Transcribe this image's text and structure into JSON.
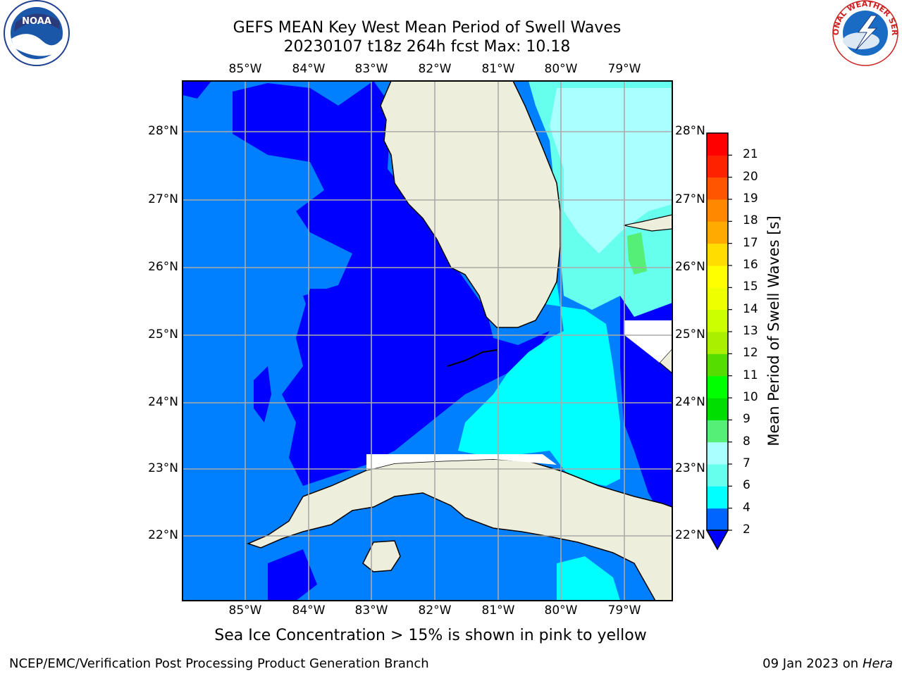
{
  "header": {
    "title_line1": "GEFS MEAN Key West Mean Period of Swell Waves",
    "title_line2": "20230107 t18z 264h fcst   Max: 10.18"
  },
  "map": {
    "lon_labels": [
      "85°W",
      "84°W",
      "83°W",
      "82°W",
      "81°W",
      "80°W",
      "79°W"
    ],
    "lat_labels": [
      "28°N",
      "27°N",
      "26°N",
      "25°N",
      "24°N",
      "23°N",
      "22°N"
    ],
    "lon_range": [
      -86,
      -78.3
    ],
    "lat_range": [
      21,
      28.8
    ],
    "land_color": "#eeeedc",
    "grid": true
  },
  "colorbar": {
    "label": "Mean Period of Swell Waves [s]",
    "ticks": [
      "2",
      "4",
      "6",
      "7",
      "8",
      "9",
      "10",
      "11",
      "12",
      "13",
      "14",
      "15",
      "16",
      "17",
      "18",
      "19",
      "20",
      "21"
    ],
    "colors": [
      "#0064ff",
      "#00ffff",
      "#66ffee",
      "#aaffff",
      "#55ee77",
      "#00dd00",
      "#00ff00",
      "#55dd00",
      "#aaee00",
      "#ccff00",
      "#eeff00",
      "#ffff00",
      "#ffdd00",
      "#ffaa00",
      "#ff8800",
      "#ff5500",
      "#ff2200",
      "#ff0000"
    ],
    "extend_color": "#0000ff"
  },
  "logos": {
    "left": "NOAA",
    "right_text": "NATIONAL WEATHER SERVICE"
  },
  "subtitle": "Sea Ice Concentration > 15% is shown in pink to yellow",
  "footer": {
    "left": "NCEP/EMC/Verification Post Processing Product Generation Branch",
    "right_date": "09 Jan 2023 on",
    "right_host": "Hera"
  }
}
